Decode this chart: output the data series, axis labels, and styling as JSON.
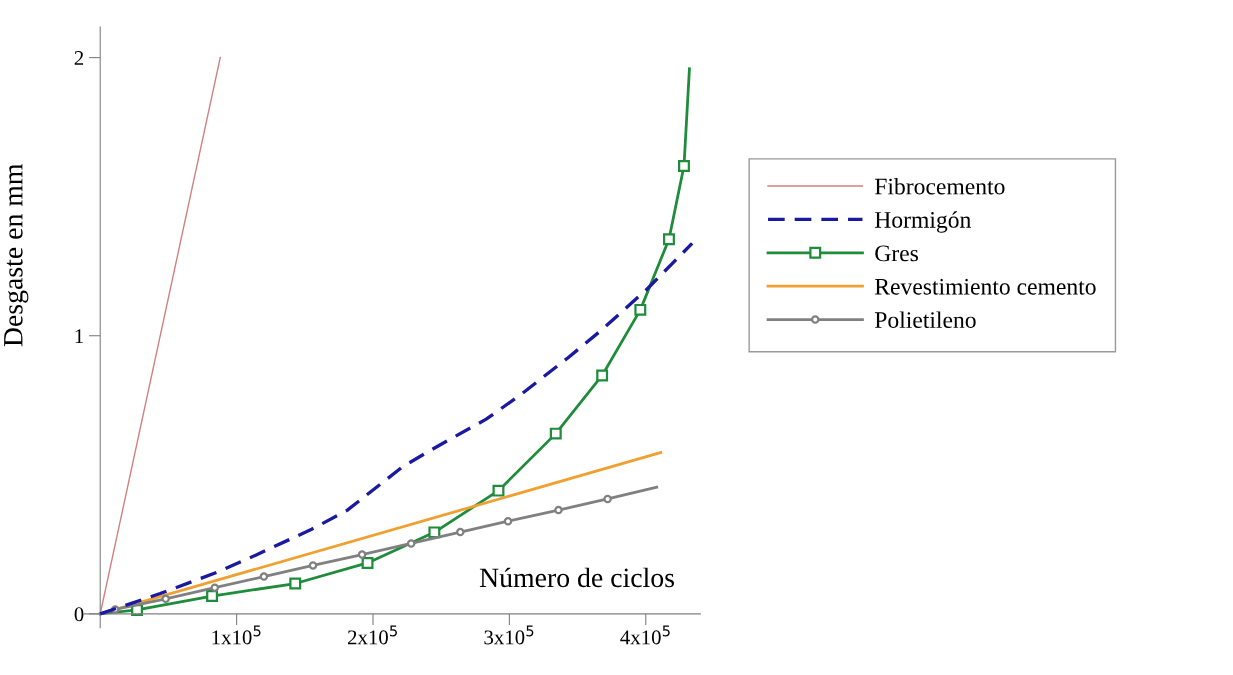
{
  "chart_data": {
    "type": "line",
    "xlabel": "Número de ciclos",
    "ylabel": "Desgaste en mm",
    "xlim": [
      -12000,
      440000
    ],
    "ylim": [
      -0.05,
      2.11
    ],
    "xticks": [
      {
        "value": 100000,
        "label": "1x10$^{5}$"
      },
      {
        "value": 200000,
        "label": "2x10$^{5}$"
      },
      {
        "value": 300000,
        "label": "3x10$^{5}$"
      },
      {
        "value": 400000,
        "label": "4x10$^{5}$"
      }
    ],
    "yticks": [
      0,
      1,
      2
    ],
    "grid": false,
    "legend": "right",
    "series": [
      {
        "name": "Fibrocemento",
        "color": "#d08080",
        "line_style": "solid",
        "marker": "none",
        "x": [
          0,
          88000
        ],
        "values": [
          0,
          2.0
        ]
      },
      {
        "name": "Hormigón",
        "color": "#1a1aa0",
        "line_style": "dashed",
        "marker": "none",
        "x": [
          0,
          44000,
          86000,
          114000,
          155000,
          181000,
          222000,
          250000,
          283000,
          308000,
          343000,
          367000,
          401000,
          434000
        ],
        "values": [
          0,
          0.073,
          0.15,
          0.211,
          0.304,
          0.372,
          0.53,
          0.61,
          0.7,
          0.787,
          0.921,
          1.018,
          1.168,
          1.332
        ]
      },
      {
        "name": "Gres",
        "color": "#1e8c3a",
        "line_style": "solid",
        "marker": "square",
        "x": [
          0,
          27000,
          82000,
          143000,
          196000,
          245000,
          292000,
          334000,
          368000,
          396000,
          417000,
          428000,
          432000
        ],
        "values": [
          0,
          0.014,
          0.064,
          0.109,
          0.183,
          0.293,
          0.443,
          0.648,
          0.857,
          1.093,
          1.347,
          1.61,
          1.96
        ]
      },
      {
        "name": "Revestimiento cemento",
        "color": "#f0a030",
        "line_style": "solid",
        "marker": "none",
        "x": [
          0,
          411000
        ],
        "values": [
          0,
          0.58
        ]
      },
      {
        "name": "Polietileno",
        "color": "#808080",
        "line_style": "solid",
        "marker": "circle",
        "x": [
          0,
          11000,
          48000,
          84000,
          120000,
          156000,
          192000,
          228000,
          264000,
          299000,
          336000,
          372000,
          408000
        ],
        "values": [
          0,
          0.016,
          0.054,
          0.094,
          0.134,
          0.174,
          0.213,
          0.253,
          0.294,
          0.333,
          0.373,
          0.413,
          0.455
        ]
      }
    ]
  }
}
